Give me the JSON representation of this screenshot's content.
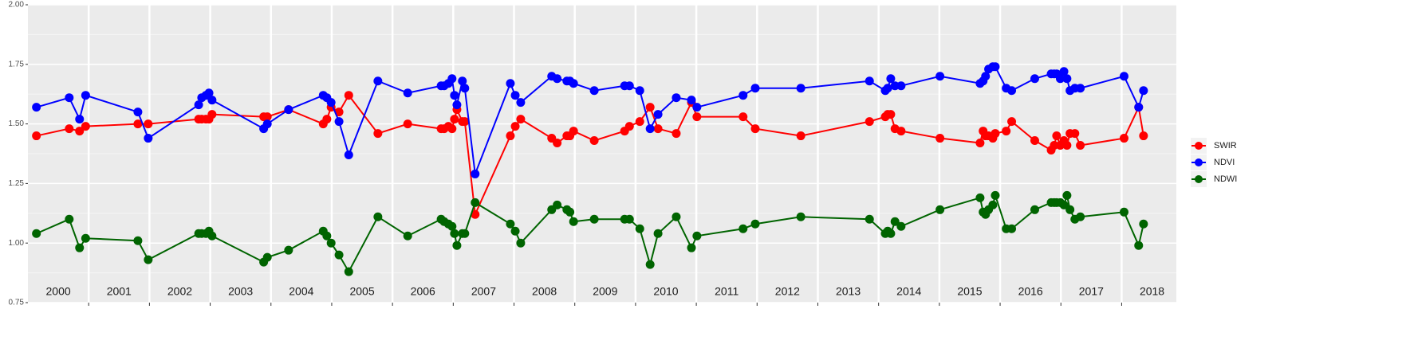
{
  "chart_data": {
    "type": "line",
    "x": [
      2000.14,
      2000.68,
      2000.85,
      2000.95,
      2001.81,
      2001.98,
      2002.81,
      2002.86,
      2002.93,
      2002.98,
      2003.03,
      2003.88,
      2003.94,
      2004.29,
      2004.86,
      2004.92,
      2004.99,
      2005.12,
      2005.28,
      2005.76,
      2006.25,
      2006.8,
      2006.85,
      2006.92,
      2006.98,
      2007.02,
      2007.06,
      2007.15,
      2007.19,
      2007.36,
      2007.94,
      2008.02,
      2008.11,
      2008.62,
      2008.71,
      2008.87,
      2008.92,
      2008.98,
      2009.32,
      2009.82,
      2009.9,
      2010.07,
      2010.24,
      2010.37,
      2010.67,
      2010.92,
      2011.01,
      2011.77,
      2011.97,
      2012.72,
      2013.85,
      2014.11,
      2014.15,
      2014.2,
      2014.27,
      2014.37,
      2015.01,
      2015.67,
      2015.72,
      2015.76,
      2015.81,
      2015.88,
      2015.92,
      2016.1,
      2016.19,
      2016.57,
      2016.84,
      2016.89,
      2016.93,
      2016.99,
      2017.05,
      2017.1,
      2017.15,
      2017.23,
      2017.32,
      2018.04,
      2018.28,
      2018.36
    ],
    "series": [
      {
        "name": "SWIR",
        "color": "#ff0000",
        "values": [
          1.45,
          1.48,
          1.47,
          1.49,
          1.5,
          1.5,
          1.52,
          1.52,
          1.52,
          1.52,
          1.54,
          1.53,
          1.53,
          1.56,
          1.5,
          1.52,
          1.57,
          1.55,
          1.62,
          1.46,
          1.5,
          1.48,
          1.48,
          1.49,
          1.48,
          1.52,
          1.56,
          1.51,
          1.51,
          1.12,
          1.45,
          1.49,
          1.52,
          1.44,
          1.42,
          1.45,
          1.45,
          1.47,
          1.43,
          1.47,
          1.49,
          1.51,
          1.57,
          1.48,
          1.46,
          1.59,
          1.53,
          1.53,
          1.48,
          1.45,
          1.51,
          1.53,
          1.54,
          1.54,
          1.48,
          1.47,
          1.44,
          1.42,
          1.47,
          1.45,
          1.45,
          1.44,
          1.46,
          1.47,
          1.51,
          1.43,
          1.39,
          1.41,
          1.45,
          1.41,
          1.43,
          1.41,
          1.46,
          1.46,
          1.41,
          1.44,
          1.57,
          1.45
        ]
      },
      {
        "name": "NDVI",
        "color": "#0000ff",
        "values": [
          1.57,
          1.61,
          1.52,
          1.62,
          1.55,
          1.44,
          1.58,
          1.61,
          1.62,
          1.63,
          1.6,
          1.48,
          1.5,
          1.56,
          1.62,
          1.61,
          1.59,
          1.51,
          1.37,
          1.68,
          1.63,
          1.66,
          1.66,
          1.67,
          1.69,
          1.62,
          1.58,
          1.68,
          1.65,
          1.29,
          1.67,
          1.62,
          1.59,
          1.7,
          1.69,
          1.68,
          1.68,
          1.67,
          1.64,
          1.66,
          1.66,
          1.64,
          1.48,
          1.54,
          1.61,
          1.6,
          1.57,
          1.62,
          1.65,
          1.65,
          1.68,
          1.64,
          1.65,
          1.69,
          1.66,
          1.66,
          1.7,
          1.67,
          1.68,
          1.7,
          1.73,
          1.74,
          1.74,
          1.65,
          1.64,
          1.69,
          1.71,
          1.71,
          1.71,
          1.69,
          1.72,
          1.69,
          1.64,
          1.65,
          1.65,
          1.7,
          1.57,
          1.64
        ]
      },
      {
        "name": "NDWI",
        "color": "#006400",
        "values": [
          1.04,
          1.1,
          0.98,
          1.02,
          1.01,
          0.93,
          1.04,
          1.04,
          1.04,
          1.05,
          1.03,
          0.92,
          0.94,
          0.97,
          1.05,
          1.03,
          1.0,
          0.95,
          0.88,
          1.11,
          1.03,
          1.1,
          1.09,
          1.08,
          1.07,
          1.04,
          0.99,
          1.04,
          1.04,
          1.17,
          1.08,
          1.05,
          1.0,
          1.14,
          1.16,
          1.14,
          1.13,
          1.09,
          1.1,
          1.1,
          1.1,
          1.06,
          0.91,
          1.04,
          1.11,
          0.98,
          1.03,
          1.06,
          1.08,
          1.11,
          1.1,
          1.04,
          1.05,
          1.04,
          1.09,
          1.07,
          1.14,
          1.19,
          1.13,
          1.12,
          1.14,
          1.16,
          1.2,
          1.06,
          1.06,
          1.14,
          1.17,
          1.17,
          1.17,
          1.17,
          1.16,
          1.2,
          1.14,
          1.1,
          1.11,
          1.13,
          0.99,
          1.08
        ]
      }
    ],
    "xlim": [
      2000,
      2018.9
    ],
    "x_breaks": [
      2001,
      2002,
      2003,
      2004,
      2005,
      2006,
      2007,
      2008,
      2009,
      2010,
      2011,
      2012,
      2013,
      2014,
      2015,
      2016,
      2017,
      2018
    ],
    "xticks": [
      {
        "value": 2000.5,
        "label": "2000"
      },
      {
        "value": 2001.5,
        "label": "2001"
      },
      {
        "value": 2002.5,
        "label": "2002"
      },
      {
        "value": 2003.5,
        "label": "2003"
      },
      {
        "value": 2004.5,
        "label": "2004"
      },
      {
        "value": 2005.5,
        "label": "2005"
      },
      {
        "value": 2006.5,
        "label": "2006"
      },
      {
        "value": 2007.5,
        "label": "2007"
      },
      {
        "value": 2008.5,
        "label": "2008"
      },
      {
        "value": 2009.5,
        "label": "2009"
      },
      {
        "value": 2010.5,
        "label": "2010"
      },
      {
        "value": 2011.5,
        "label": "2011"
      },
      {
        "value": 2012.5,
        "label": "2012"
      },
      {
        "value": 2013.5,
        "label": "2013"
      },
      {
        "value": 2014.5,
        "label": "2014"
      },
      {
        "value": 2015.5,
        "label": "2015"
      },
      {
        "value": 2016.5,
        "label": "2016"
      },
      {
        "value": 2017.5,
        "label": "2017"
      },
      {
        "value": 2018.5,
        "label": "2018"
      }
    ],
    "ylim": [
      0.75,
      2.0
    ],
    "yticks": [
      {
        "value": 0.75,
        "label": "0.75"
      },
      {
        "value": 1.0,
        "label": "1.00"
      },
      {
        "value": 1.25,
        "label": "1.25"
      },
      {
        "value": 1.5,
        "label": "1.50"
      },
      {
        "value": 1.75,
        "label": "1.75"
      },
      {
        "value": 2.0,
        "label": "2.00"
      }
    ],
    "grid": true,
    "legend": "right"
  }
}
